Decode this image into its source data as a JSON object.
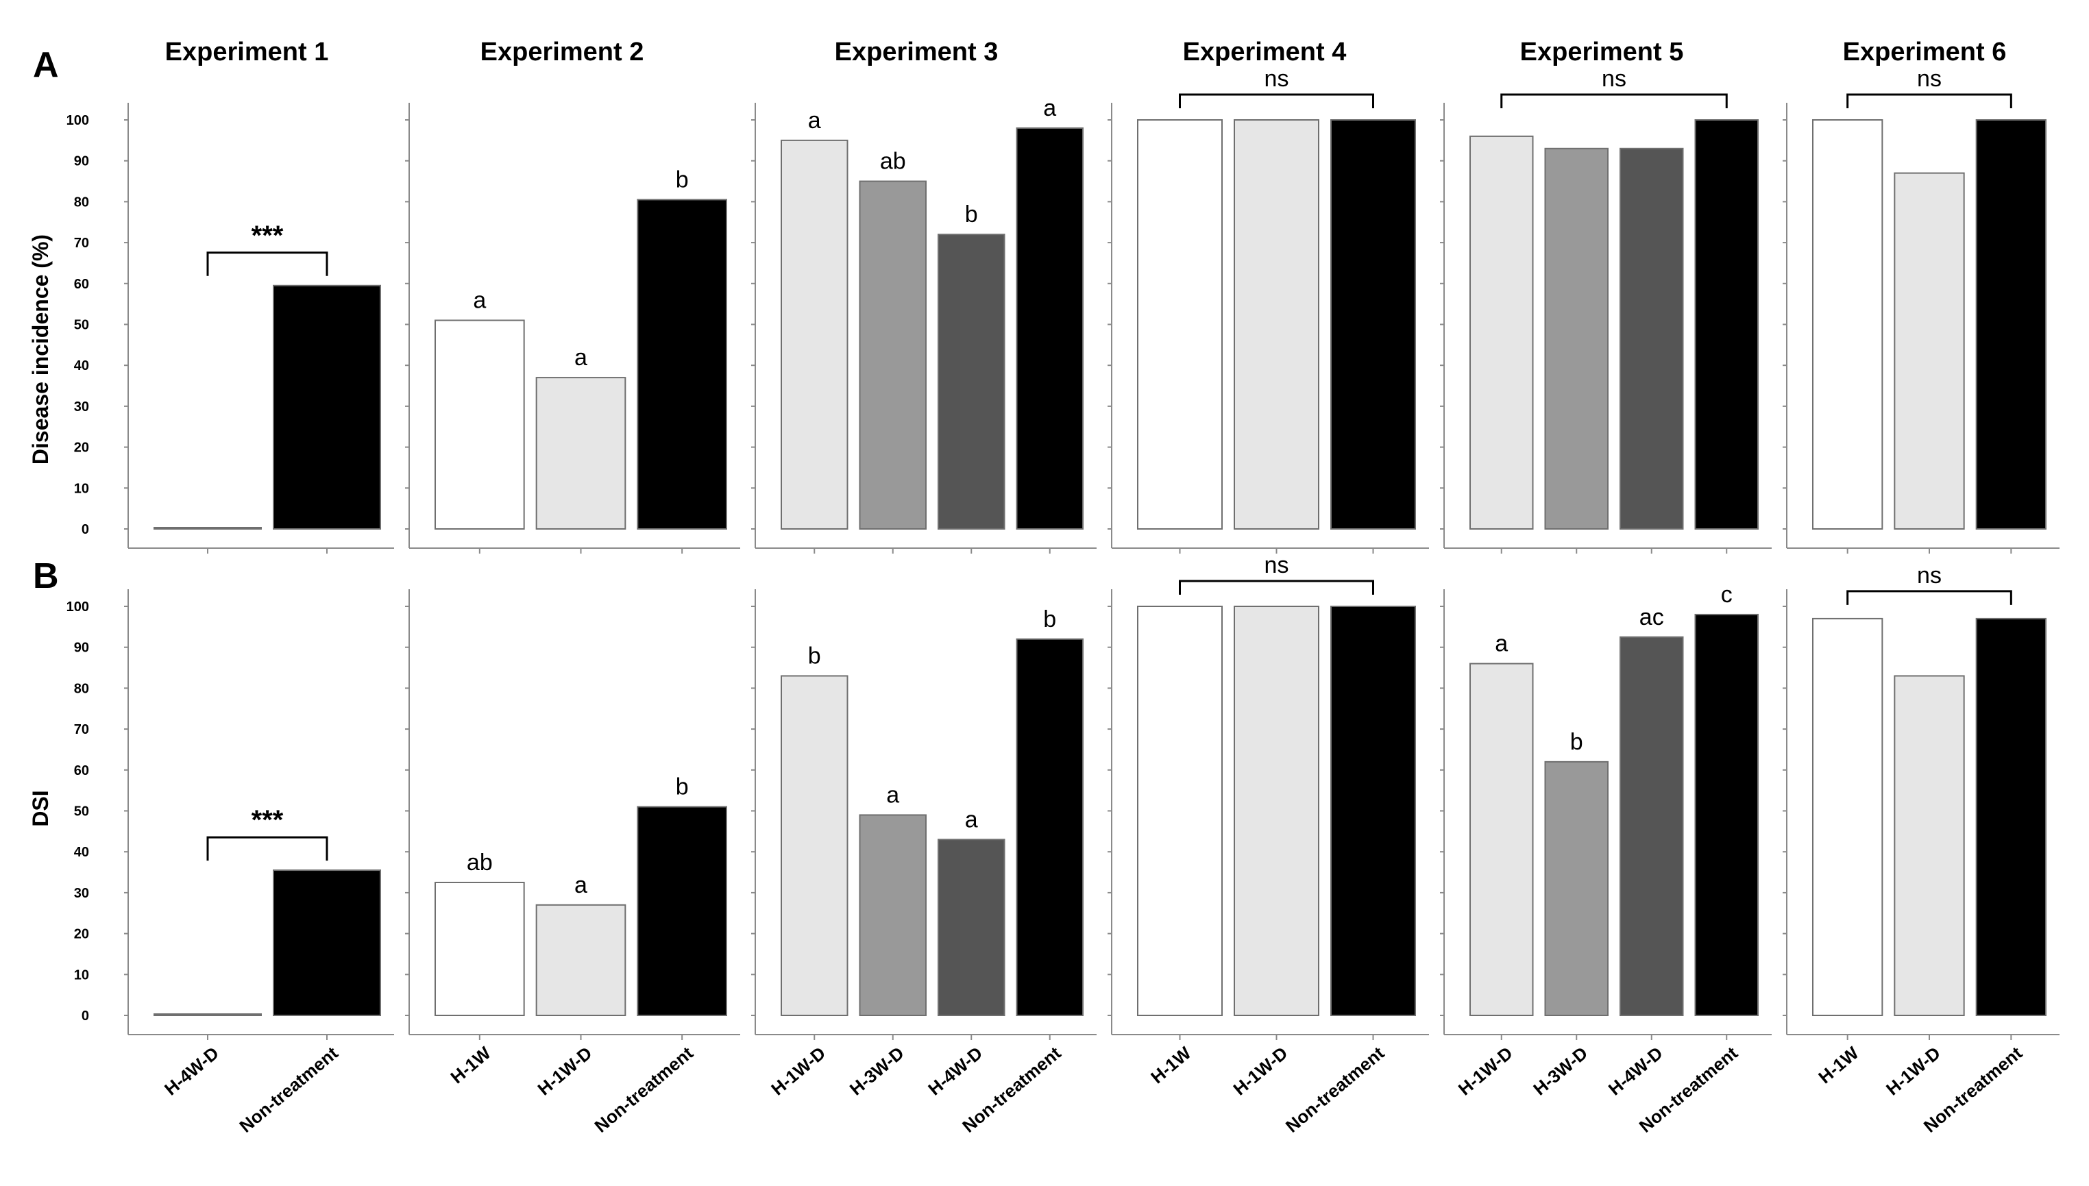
{
  "figure": {
    "panel_labels": [
      "A",
      "B"
    ],
    "y_labels": [
      "Disease incidence (%)",
      "DSI"
    ],
    "y_ticks": [
      0,
      10,
      20,
      30,
      40,
      50,
      60,
      70,
      80,
      90,
      100
    ]
  },
  "colors": {
    "white": "#ffffff",
    "light_gray": "#e6e6e6",
    "mid_gray": "#999999",
    "dark_gray": "#555555",
    "black": "#000000"
  },
  "chart_data": [
    {
      "type": "bar",
      "title": "Experiment 1",
      "row": "A",
      "ylabel": "Disease incidence (%)",
      "ylim": [
        0,
        100
      ],
      "categories": [
        "H-4W-D",
        "Non-treatment"
      ],
      "values": [
        0,
        59.5
      ],
      "fills": [
        "white",
        "black"
      ],
      "letters": [
        "",
        ""
      ],
      "bracket": {
        "from": 0,
        "to": 1,
        "label": "***"
      }
    },
    {
      "type": "bar",
      "title": "Experiment 2",
      "row": "A",
      "ylabel": "Disease incidence (%)",
      "ylim": [
        0,
        100
      ],
      "categories": [
        "H-1W",
        "H-1W-D",
        "Non-treatment"
      ],
      "values": [
        51,
        37,
        80.5
      ],
      "fills": [
        "white",
        "light_gray",
        "black"
      ],
      "letters": [
        "a",
        "a",
        "b"
      ]
    },
    {
      "type": "bar",
      "title": "Experiment 3",
      "row": "A",
      "ylabel": "Disease incidence (%)",
      "ylim": [
        0,
        100
      ],
      "categories": [
        "H-1W-D",
        "H-3W-D",
        "H-4W-D",
        "Non-treatment"
      ],
      "values": [
        95,
        85,
        72,
        98
      ],
      "fills": [
        "light_gray",
        "mid_gray",
        "dark_gray",
        "black"
      ],
      "letters": [
        "a",
        "ab",
        "b",
        "a"
      ]
    },
    {
      "type": "bar",
      "title": "Experiment 4",
      "row": "A",
      "ylabel": "Disease incidence (%)",
      "ylim": [
        0,
        100
      ],
      "categories": [
        "H-1W",
        "H-1W-D",
        "Non-treatment"
      ],
      "values": [
        100,
        100,
        100
      ],
      "fills": [
        "white",
        "light_gray",
        "black"
      ],
      "letters": [
        "",
        "",
        ""
      ],
      "bracket": {
        "from": 0,
        "to": 2,
        "label": "ns"
      }
    },
    {
      "type": "bar",
      "title": "Experiment 5",
      "row": "A",
      "ylabel": "Disease incidence (%)",
      "ylim": [
        0,
        100
      ],
      "categories": [
        "H-1W-D",
        "H-3W-D",
        "H-4W-D",
        "Non-treatment"
      ],
      "values": [
        96,
        93,
        93,
        100
      ],
      "fills": [
        "light_gray",
        "mid_gray",
        "dark_gray",
        "black"
      ],
      "letters": [
        "",
        "",
        "",
        ""
      ],
      "bracket": {
        "from": 0,
        "to": 3,
        "label": "ns"
      }
    },
    {
      "type": "bar",
      "title": "Experiment 6",
      "row": "A",
      "ylabel": "Disease incidence (%)",
      "ylim": [
        0,
        100
      ],
      "categories": [
        "H-1W",
        "H-1W-D",
        "Non-treatment"
      ],
      "values": [
        100,
        87,
        100
      ],
      "fills": [
        "white",
        "light_gray",
        "black"
      ],
      "letters": [
        "",
        "",
        ""
      ],
      "bracket": {
        "from": 0,
        "to": 2,
        "label": "ns"
      }
    },
    {
      "type": "bar",
      "title": "Experiment 1",
      "row": "B",
      "ylabel": "DSI",
      "ylim": [
        0,
        100
      ],
      "categories": [
        "H-4W-D",
        "Non-treatment"
      ],
      "values": [
        0,
        35.5
      ],
      "fills": [
        "white",
        "black"
      ],
      "letters": [
        "",
        ""
      ],
      "bracket": {
        "from": 0,
        "to": 1,
        "label": "***"
      }
    },
    {
      "type": "bar",
      "title": "Experiment 2",
      "row": "B",
      "ylabel": "DSI",
      "ylim": [
        0,
        100
      ],
      "categories": [
        "H-1W",
        "H-1W-D",
        "Non-treatment"
      ],
      "values": [
        32.5,
        27,
        51
      ],
      "fills": [
        "white",
        "light_gray",
        "black"
      ],
      "letters": [
        "ab",
        "a",
        "b"
      ]
    },
    {
      "type": "bar",
      "title": "Experiment 3",
      "row": "B",
      "ylabel": "DSI",
      "ylim": [
        0,
        100
      ],
      "categories": [
        "H-1W-D",
        "H-3W-D",
        "H-4W-D",
        "Non-treatment"
      ],
      "values": [
        83,
        49,
        43,
        92
      ],
      "fills": [
        "light_gray",
        "mid_gray",
        "dark_gray",
        "black"
      ],
      "letters": [
        "b",
        "a",
        "a",
        "b"
      ]
    },
    {
      "type": "bar",
      "title": "Experiment 4",
      "row": "B",
      "ylabel": "DSI",
      "ylim": [
        0,
        100
      ],
      "categories": [
        "H-1W",
        "H-1W-D",
        "Non-treatment"
      ],
      "values": [
        100,
        100,
        100
      ],
      "fills": [
        "white",
        "light_gray",
        "black"
      ],
      "letters": [
        "",
        "",
        ""
      ],
      "bracket": {
        "from": 0,
        "to": 2,
        "label": "ns"
      }
    },
    {
      "type": "bar",
      "title": "Experiment 5",
      "row": "B",
      "ylabel": "DSI",
      "ylim": [
        0,
        100
      ],
      "categories": [
        "H-1W-D",
        "H-3W-D",
        "H-4W-D",
        "Non-treatment"
      ],
      "values": [
        86,
        62,
        92.5,
        98
      ],
      "fills": [
        "light_gray",
        "mid_gray",
        "dark_gray",
        "black"
      ],
      "letters": [
        "a",
        "b",
        "ac",
        "c"
      ]
    },
    {
      "type": "bar",
      "title": "Experiment 6",
      "row": "B",
      "ylabel": "DSI",
      "ylim": [
        0,
        100
      ],
      "categories": [
        "H-1W",
        "H-1W-D",
        "Non-treatment"
      ],
      "values": [
        97,
        83,
        97
      ],
      "fills": [
        "white",
        "light_gray",
        "black"
      ],
      "letters": [
        "",
        "",
        ""
      ],
      "bracket": {
        "from": 0,
        "to": 2,
        "label": "ns"
      }
    }
  ]
}
